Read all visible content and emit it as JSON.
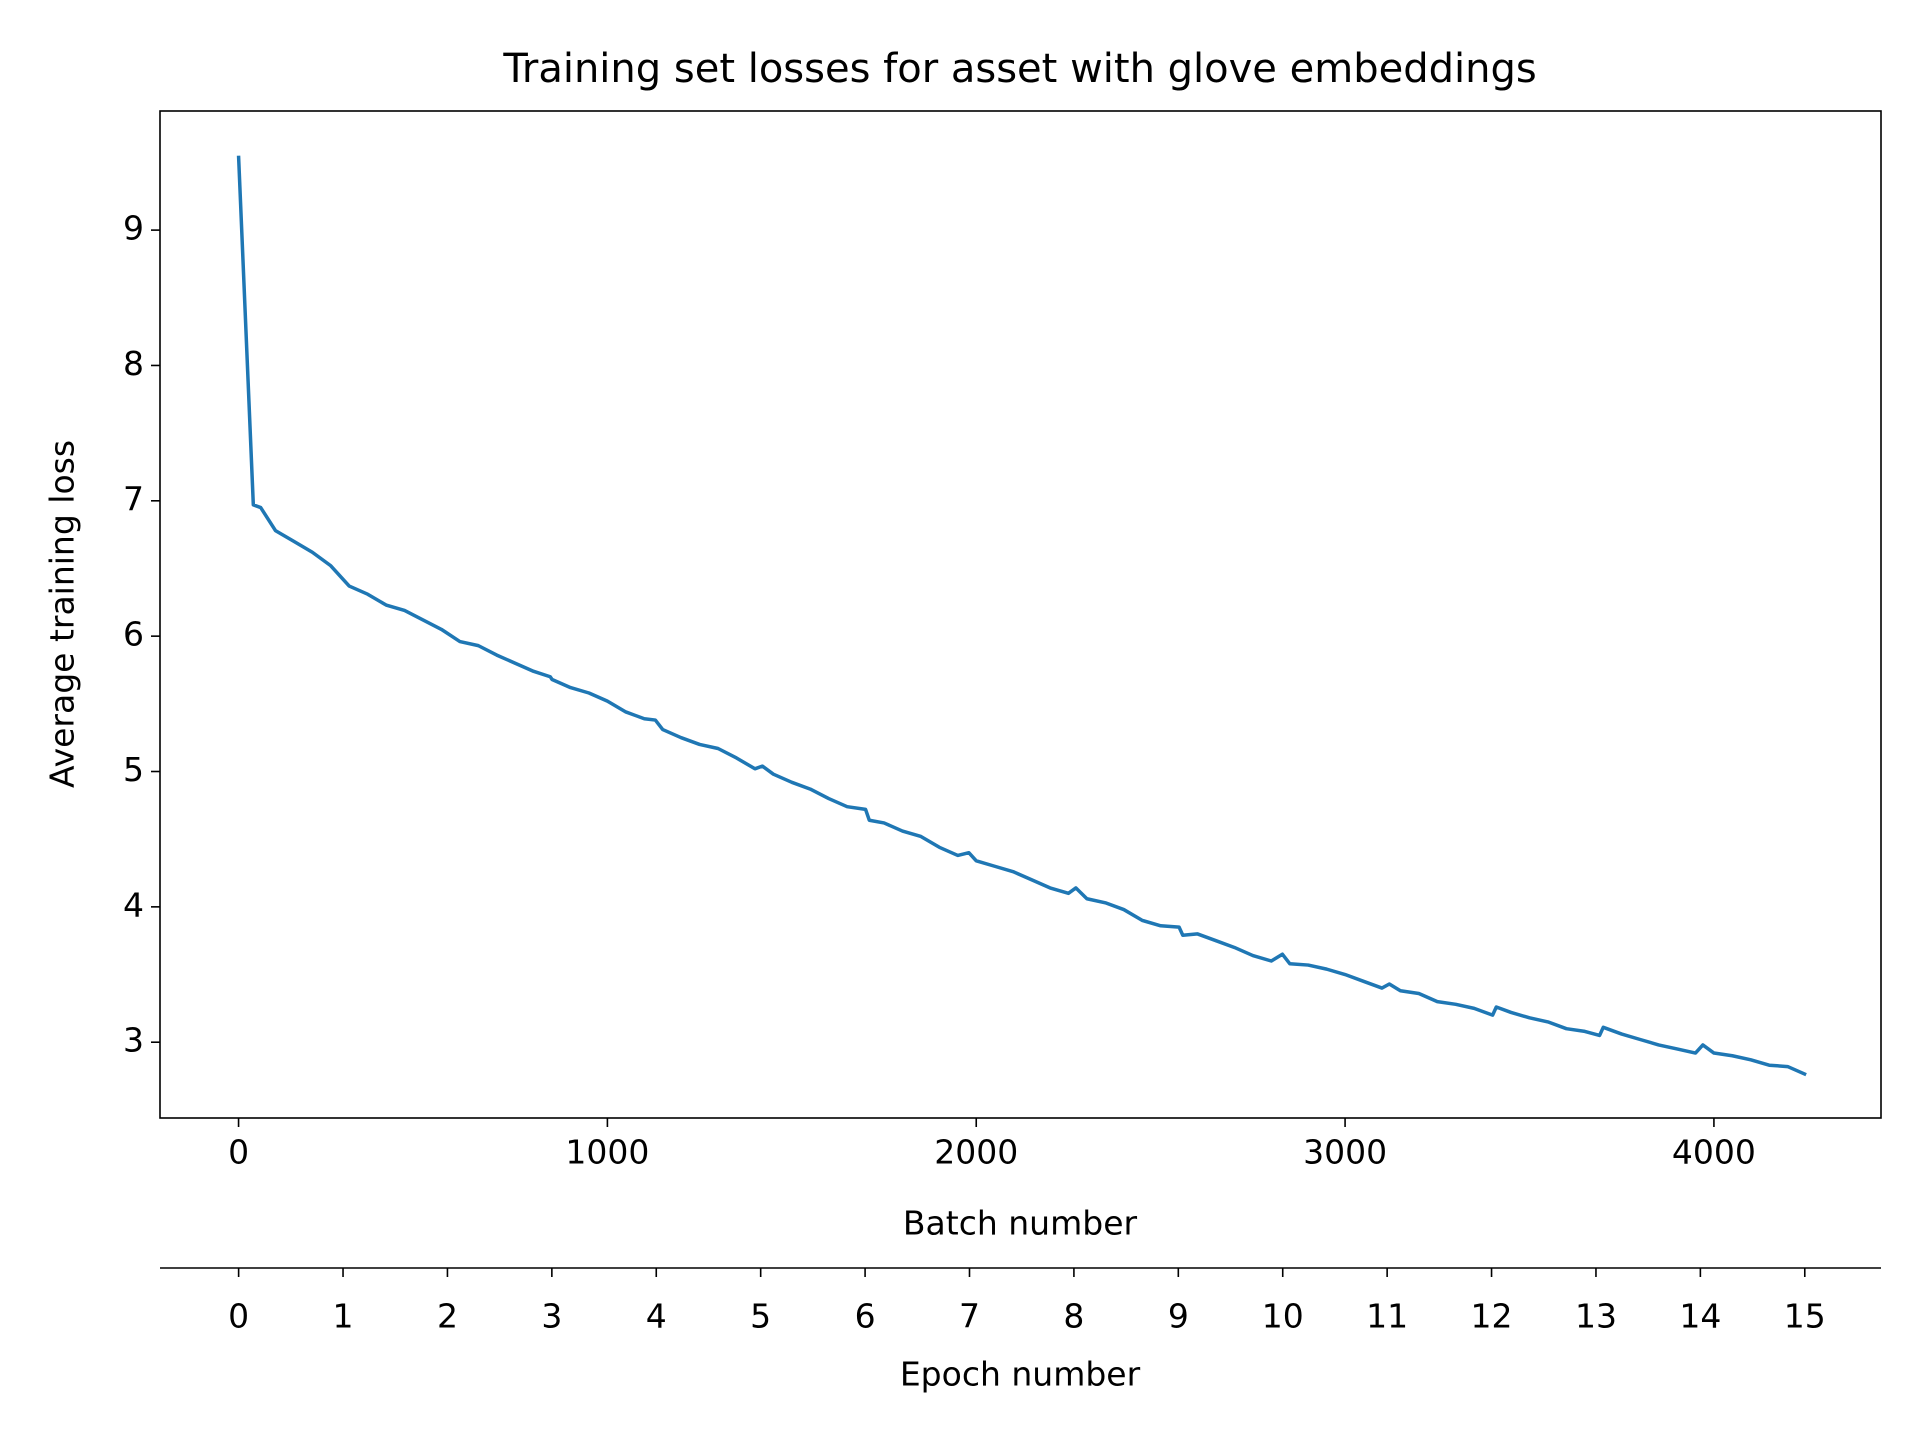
{
  "chart_data": {
    "type": "line",
    "title": "Training set losses for asset with glove embeddings",
    "xlabel": "Batch number",
    "ylabel": "Average training loss",
    "x2label": "Epoch number",
    "x": [
      0,
      40,
      60,
      100,
      150,
      200,
      250,
      300,
      350,
      400,
      450,
      500,
      550,
      600,
      650,
      700,
      750,
      800,
      845,
      850,
      900,
      950,
      1000,
      1050,
      1100,
      1130,
      1150,
      1200,
      1250,
      1300,
      1350,
      1400,
      1420,
      1450,
      1500,
      1550,
      1600,
      1650,
      1700,
      1710,
      1750,
      1800,
      1850,
      1900,
      1950,
      1980,
      2000,
      2050,
      2100,
      2150,
      2200,
      2250,
      2270,
      2300,
      2350,
      2400,
      2450,
      2500,
      2550,
      2560,
      2600,
      2650,
      2700,
      2750,
      2800,
      2830,
      2850,
      2900,
      2950,
      3000,
      3050,
      3100,
      3120,
      3150,
      3200,
      3250,
      3300,
      3350,
      3400,
      3410,
      3450,
      3500,
      3550,
      3600,
      3650,
      3690,
      3700,
      3750,
      3800,
      3850,
      3900,
      3950,
      3970,
      4000,
      4050,
      4100,
      4150,
      4200,
      4250
    ],
    "series": [
      {
        "color": "#1f77b4",
        "values": [
          9.55,
          6.97,
          6.95,
          6.78,
          6.7,
          6.62,
          6.52,
          6.37,
          6.31,
          6.23,
          6.19,
          6.12,
          6.05,
          5.96,
          5.93,
          5.86,
          5.8,
          5.74,
          5.7,
          5.68,
          5.62,
          5.58,
          5.52,
          5.44,
          5.39,
          5.38,
          5.31,
          5.25,
          5.2,
          5.17,
          5.1,
          5.02,
          5.04,
          4.98,
          4.92,
          4.87,
          4.8,
          4.74,
          4.72,
          4.64,
          4.62,
          4.56,
          4.52,
          4.44,
          4.38,
          4.4,
          4.34,
          4.3,
          4.26,
          4.2,
          4.14,
          4.1,
          4.14,
          4.06,
          4.03,
          3.98,
          3.9,
          3.86,
          3.85,
          3.79,
          3.8,
          3.75,
          3.7,
          3.64,
          3.6,
          3.65,
          3.58,
          3.57,
          3.54,
          3.5,
          3.45,
          3.4,
          3.43,
          3.38,
          3.36,
          3.3,
          3.28,
          3.25,
          3.2,
          3.26,
          3.22,
          3.18,
          3.15,
          3.1,
          3.08,
          3.05,
          3.11,
          3.06,
          3.02,
          2.98,
          2.95,
          2.92,
          2.98,
          2.92,
          2.9,
          2.87,
          2.83,
          2.82,
          2.76
        ]
      }
    ],
    "xlim": [
      -213,
      4453
    ],
    "ylim": [
      2.44,
      9.88
    ],
    "xticks": [
      0,
      1000,
      2000,
      3000,
      4000
    ],
    "yticks": [
      3,
      4,
      5,
      6,
      7,
      8,
      9
    ],
    "x2lim": [
      -0.753,
      15.73
    ],
    "x2ticks": [
      0,
      1,
      2,
      3,
      4,
      5,
      6,
      7,
      8,
      9,
      10,
      11,
      12,
      13,
      14,
      15
    ]
  }
}
